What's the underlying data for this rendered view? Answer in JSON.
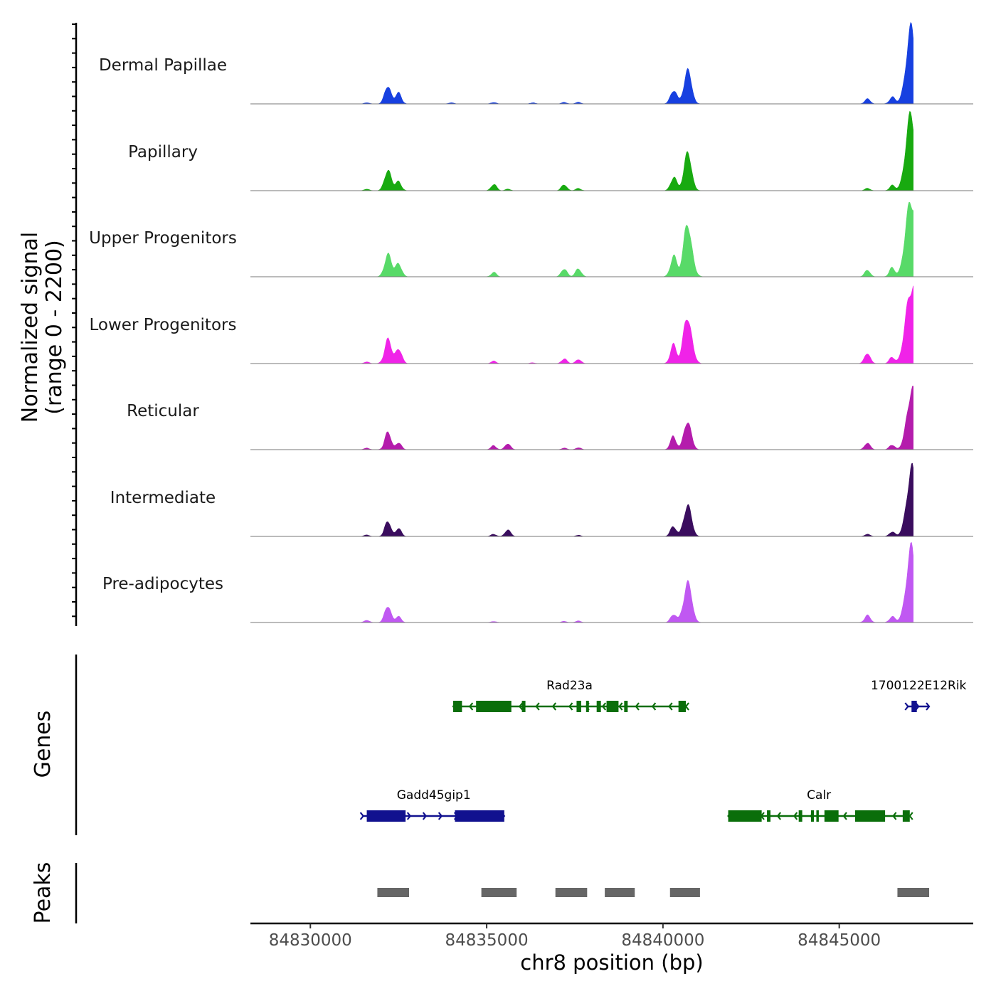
{
  "chart_data": {
    "type": "area",
    "title": "",
    "chromosome": "chr8",
    "xlabel": "chr8 position (bp)",
    "xlim": [
      84828300,
      84848800
    ],
    "xticks": [
      84830000,
      84835000,
      84840000,
      84845000
    ],
    "xtick_labels": [
      "84830000",
      "84835000",
      "84840000",
      "84845000"
    ],
    "ylabel_line1": "Normalized signal",
    "ylabel_line2": "(range 0 - 2200)",
    "ylim": [
      0,
      2200
    ],
    "coverage_tracks": [
      {
        "name": "Dermal Papillae",
        "color": "#1740e0",
        "peaks": [
          [
            84831600,
            30
          ],
          [
            84832200,
            480
          ],
          [
            84832500,
            280
          ],
          [
            84834000,
            30
          ],
          [
            84835200,
            40
          ],
          [
            84836300,
            30
          ],
          [
            84837200,
            40
          ],
          [
            84837600,
            40
          ],
          [
            84840300,
            380
          ],
          [
            84840700,
            870
          ],
          [
            84845800,
            130
          ],
          [
            84846500,
            180
          ],
          [
            84847050,
            1900
          ],
          [
            84847500,
            120
          ]
        ]
      },
      {
        "name": "Papillary",
        "color": "#18aa10",
        "peaks": [
          [
            84831600,
            40
          ],
          [
            84832200,
            560
          ],
          [
            84832500,
            240
          ],
          [
            84835200,
            170
          ],
          [
            84835600,
            40
          ],
          [
            84837200,
            160
          ],
          [
            84837600,
            60
          ],
          [
            84840300,
            350
          ],
          [
            84840700,
            950
          ],
          [
            84845800,
            60
          ],
          [
            84846500,
            130
          ],
          [
            84847050,
            2000
          ],
          [
            84847500,
            140
          ]
        ]
      },
      {
        "name": "Upper Progenitors",
        "color": "#58da68",
        "peaks": [
          [
            84832200,
            600
          ],
          [
            84832500,
            360
          ],
          [
            84835200,
            110
          ],
          [
            84837200,
            220
          ],
          [
            84837600,
            220
          ],
          [
            84840300,
            500
          ],
          [
            84840700,
            1300
          ],
          [
            84845800,
            170
          ],
          [
            84846500,
            220
          ],
          [
            84847050,
            2100
          ],
          [
            84847500,
            130
          ]
        ]
      },
      {
        "name": "Lower Progenitors",
        "color": "#f023e8",
        "peaks": [
          [
            84829200,
            20
          ],
          [
            84831600,
            40
          ],
          [
            84832200,
            620
          ],
          [
            84832500,
            400
          ],
          [
            84835200,
            60
          ],
          [
            84836300,
            20
          ],
          [
            84837200,
            130
          ],
          [
            84837600,
            110
          ],
          [
            84840300,
            460
          ],
          [
            84840700,
            1200
          ],
          [
            84845800,
            270
          ],
          [
            84846500,
            160
          ],
          [
            84847050,
            2100
          ],
          [
            84847500,
            250
          ]
        ]
      },
      {
        "name": "Reticular",
        "color": "#b41cac",
        "peaks": [
          [
            84831600,
            40
          ],
          [
            84832200,
            440
          ],
          [
            84832500,
            180
          ],
          [
            84835200,
            100
          ],
          [
            84835600,
            160
          ],
          [
            84837200,
            40
          ],
          [
            84837600,
            50
          ],
          [
            84840300,
            340
          ],
          [
            84840700,
            760
          ],
          [
            84845800,
            180
          ],
          [
            84846500,
            130
          ],
          [
            84847050,
            1550
          ],
          [
            84847500,
            120
          ]
        ]
      },
      {
        "name": "Intermediate",
        "color": "#3a0d5e",
        "peaks": [
          [
            84831600,
            40
          ],
          [
            84832200,
            390
          ],
          [
            84832500,
            200
          ],
          [
            84835200,
            60
          ],
          [
            84835600,
            180
          ],
          [
            84837600,
            30
          ],
          [
            84840300,
            280
          ],
          [
            84840700,
            850
          ],
          [
            84845800,
            60
          ],
          [
            84846500,
            130
          ],
          [
            84847050,
            1680
          ],
          [
            84847500,
            120
          ]
        ]
      },
      {
        "name": "Pre-adipocytes",
        "color": "#c058f2",
        "peaks": [
          [
            84829200,
            20
          ],
          [
            84831600,
            60
          ],
          [
            84832200,
            440
          ],
          [
            84832500,
            150
          ],
          [
            84835200,
            30
          ],
          [
            84837200,
            30
          ],
          [
            84837600,
            40
          ],
          [
            84840300,
            230
          ],
          [
            84840700,
            1050
          ],
          [
            84845800,
            190
          ],
          [
            84846500,
            160
          ],
          [
            84847050,
            1850
          ],
          [
            84847500,
            420
          ]
        ]
      }
    ],
    "genes_label": "Genes",
    "genes": [
      {
        "name": "Rad23a",
        "strand": "-",
        "color": "#0a6e0a",
        "row": 1,
        "start": 84834050,
        "end": 84840650,
        "exons": [
          [
            84834050,
            84834300
          ],
          [
            84834700,
            84835700
          ],
          [
            84836000,
            84836100
          ],
          [
            84837550,
            84837680
          ],
          [
            84837820,
            84837900
          ],
          [
            84838120,
            84838240
          ],
          [
            84838400,
            84838740
          ],
          [
            84838900,
            84839000
          ],
          [
            84840440,
            84840650
          ]
        ]
      },
      {
        "name": "1700122E12Rik",
        "strand": "+",
        "color": "#11118f",
        "row": 1,
        "start": 84846950,
        "end": 84847550,
        "exons": [
          [
            84847050,
            84847200
          ]
        ]
      },
      {
        "name": "Gadd45gip1",
        "strand": "+",
        "color": "#11118f",
        "row": 2,
        "start": 84831500,
        "end": 84835500,
        "exons": [
          [
            84831600,
            84832700
          ],
          [
            84834100,
            84835500
          ]
        ]
      },
      {
        "name": "Calr",
        "strand": "-",
        "color": "#0a6e0a",
        "row": 2,
        "start": 84841850,
        "end": 84847000,
        "exons": [
          [
            84841850,
            84842800
          ],
          [
            84842950,
            84843050
          ],
          [
            84843850,
            84843950
          ],
          [
            84844200,
            84844280
          ],
          [
            84844350,
            84844420
          ],
          [
            84844580,
            84844980
          ],
          [
            84845450,
            84846300
          ],
          [
            84846800,
            84847000
          ]
        ]
      }
    ],
    "peaks_label": "Peaks",
    "peak_regions": [
      [
        84831900,
        84832800
      ],
      [
        84834850,
        84835850
      ],
      [
        84836950,
        84837850
      ],
      [
        84838350,
        84839200
      ],
      [
        84840200,
        84841050
      ],
      [
        84846650,
        84847550
      ]
    ]
  }
}
